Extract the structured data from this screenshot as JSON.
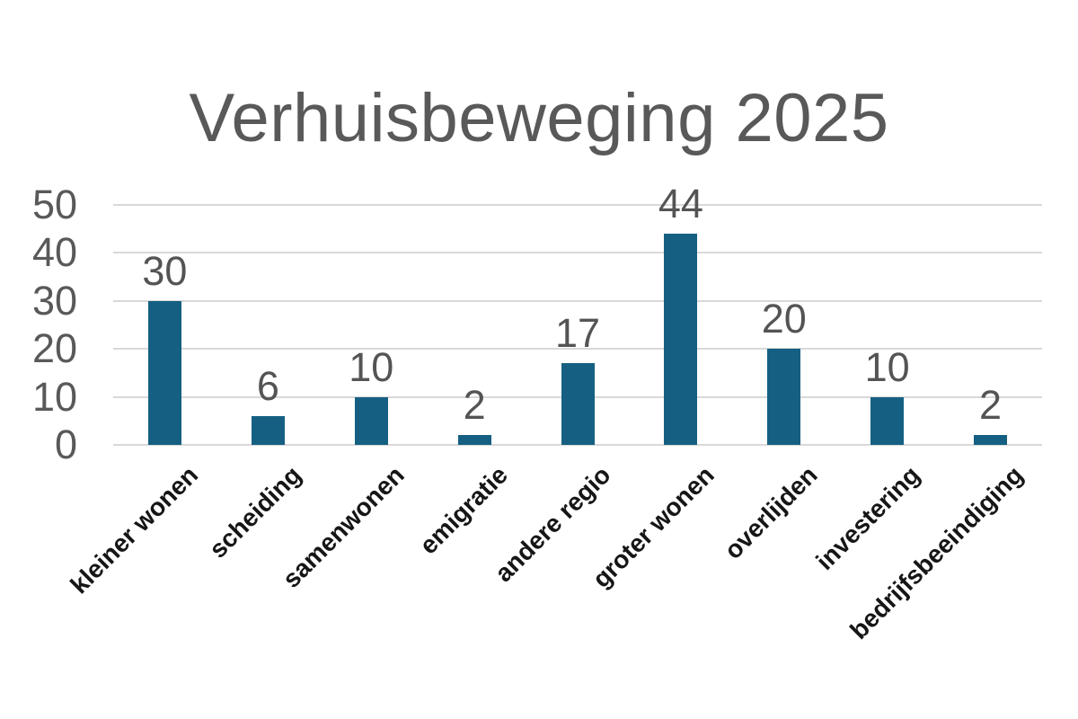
{
  "title": "Verhuisbeweging 2025",
  "colors": {
    "background": "#ffffff",
    "bar": "#156082",
    "gridline": "#d9d9d9",
    "axis_tick_text": "#595959",
    "value_label_text": "#545454",
    "category_label_text": "#161616",
    "title_text": "#595959"
  },
  "chart_data": {
    "type": "bar",
    "title": "Verhuisbeweging 2025",
    "categories": [
      "kleiner wonen",
      "scheiding",
      "samenwonen",
      "emigratie",
      "andere regio",
      "groter wonen",
      "overlijden",
      "investering",
      "bedrijfsbeeindiging"
    ],
    "values": [
      30,
      6,
      10,
      2,
      17,
      44,
      20,
      10,
      2
    ],
    "xlabel": "",
    "ylabel": "",
    "ylim": [
      0,
      50
    ],
    "yticks": [
      0,
      10,
      20,
      30,
      40,
      50
    ],
    "grid": true,
    "legend": false,
    "data_labels_shown": true,
    "category_label_rotation_deg": 45
  }
}
